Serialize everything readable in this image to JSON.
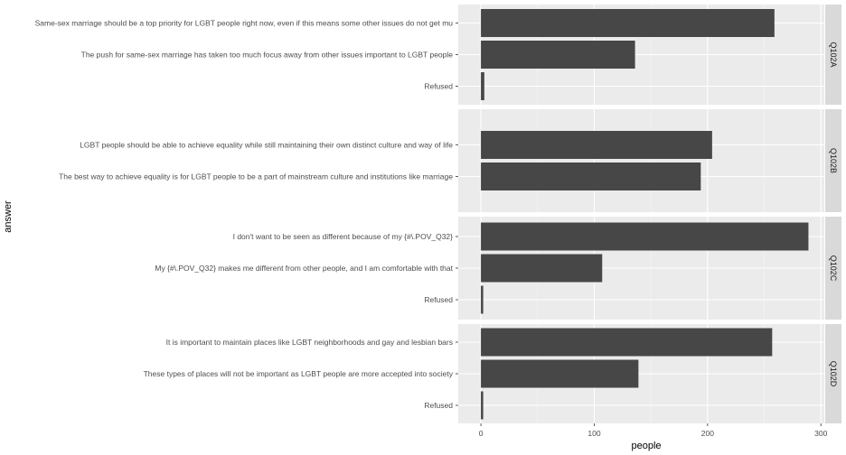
{
  "chart_data": {
    "type": "bar",
    "orientation": "horizontal",
    "xlabel": "people",
    "ylabel": "answer",
    "xlim": [
      -20,
      303
    ],
    "x_ticks": [
      0,
      100,
      200,
      300
    ],
    "grid": true,
    "bar_color": "#474747",
    "panel_bg": "#ebebeb",
    "strip_bg": "#d9d9d9",
    "facets": [
      {
        "label": "Q102A",
        "categories": [
          "Same-sex marriage should be a top priority for LGBT people right now, even if this means some other issues do not get mu",
          "The push for same-sex marriage has taken too much focus away from other issues important to LGBT people",
          "Refused"
        ],
        "values": [
          259,
          136,
          3
        ]
      },
      {
        "label": "Q102B",
        "categories": [
          "LGBT people should be able to achieve equality while still maintaining their own distinct culture and way of life",
          "The best way to achieve equality is for LGBT people to be a part of  mainstream culture and institutions like marriage"
        ],
        "values": [
          204,
          194
        ]
      },
      {
        "label": "Q102C",
        "categories": [
          "I don't want to be seen as different because of my {#\\.POV_Q32}",
          "My {#\\.POV_Q32}  makes me  different from other people, and I am comfortable with that",
          "Refused"
        ],
        "values": [
          289,
          107,
          2
        ]
      },
      {
        "label": "Q102D",
        "categories": [
          "It is important to maintain places like LGBT neighborhoods and gay and lesbian bars",
          "These types of places will not be important as LGBT people are more accepted into society",
          "Refused"
        ],
        "values": [
          257,
          139,
          2
        ]
      }
    ]
  }
}
